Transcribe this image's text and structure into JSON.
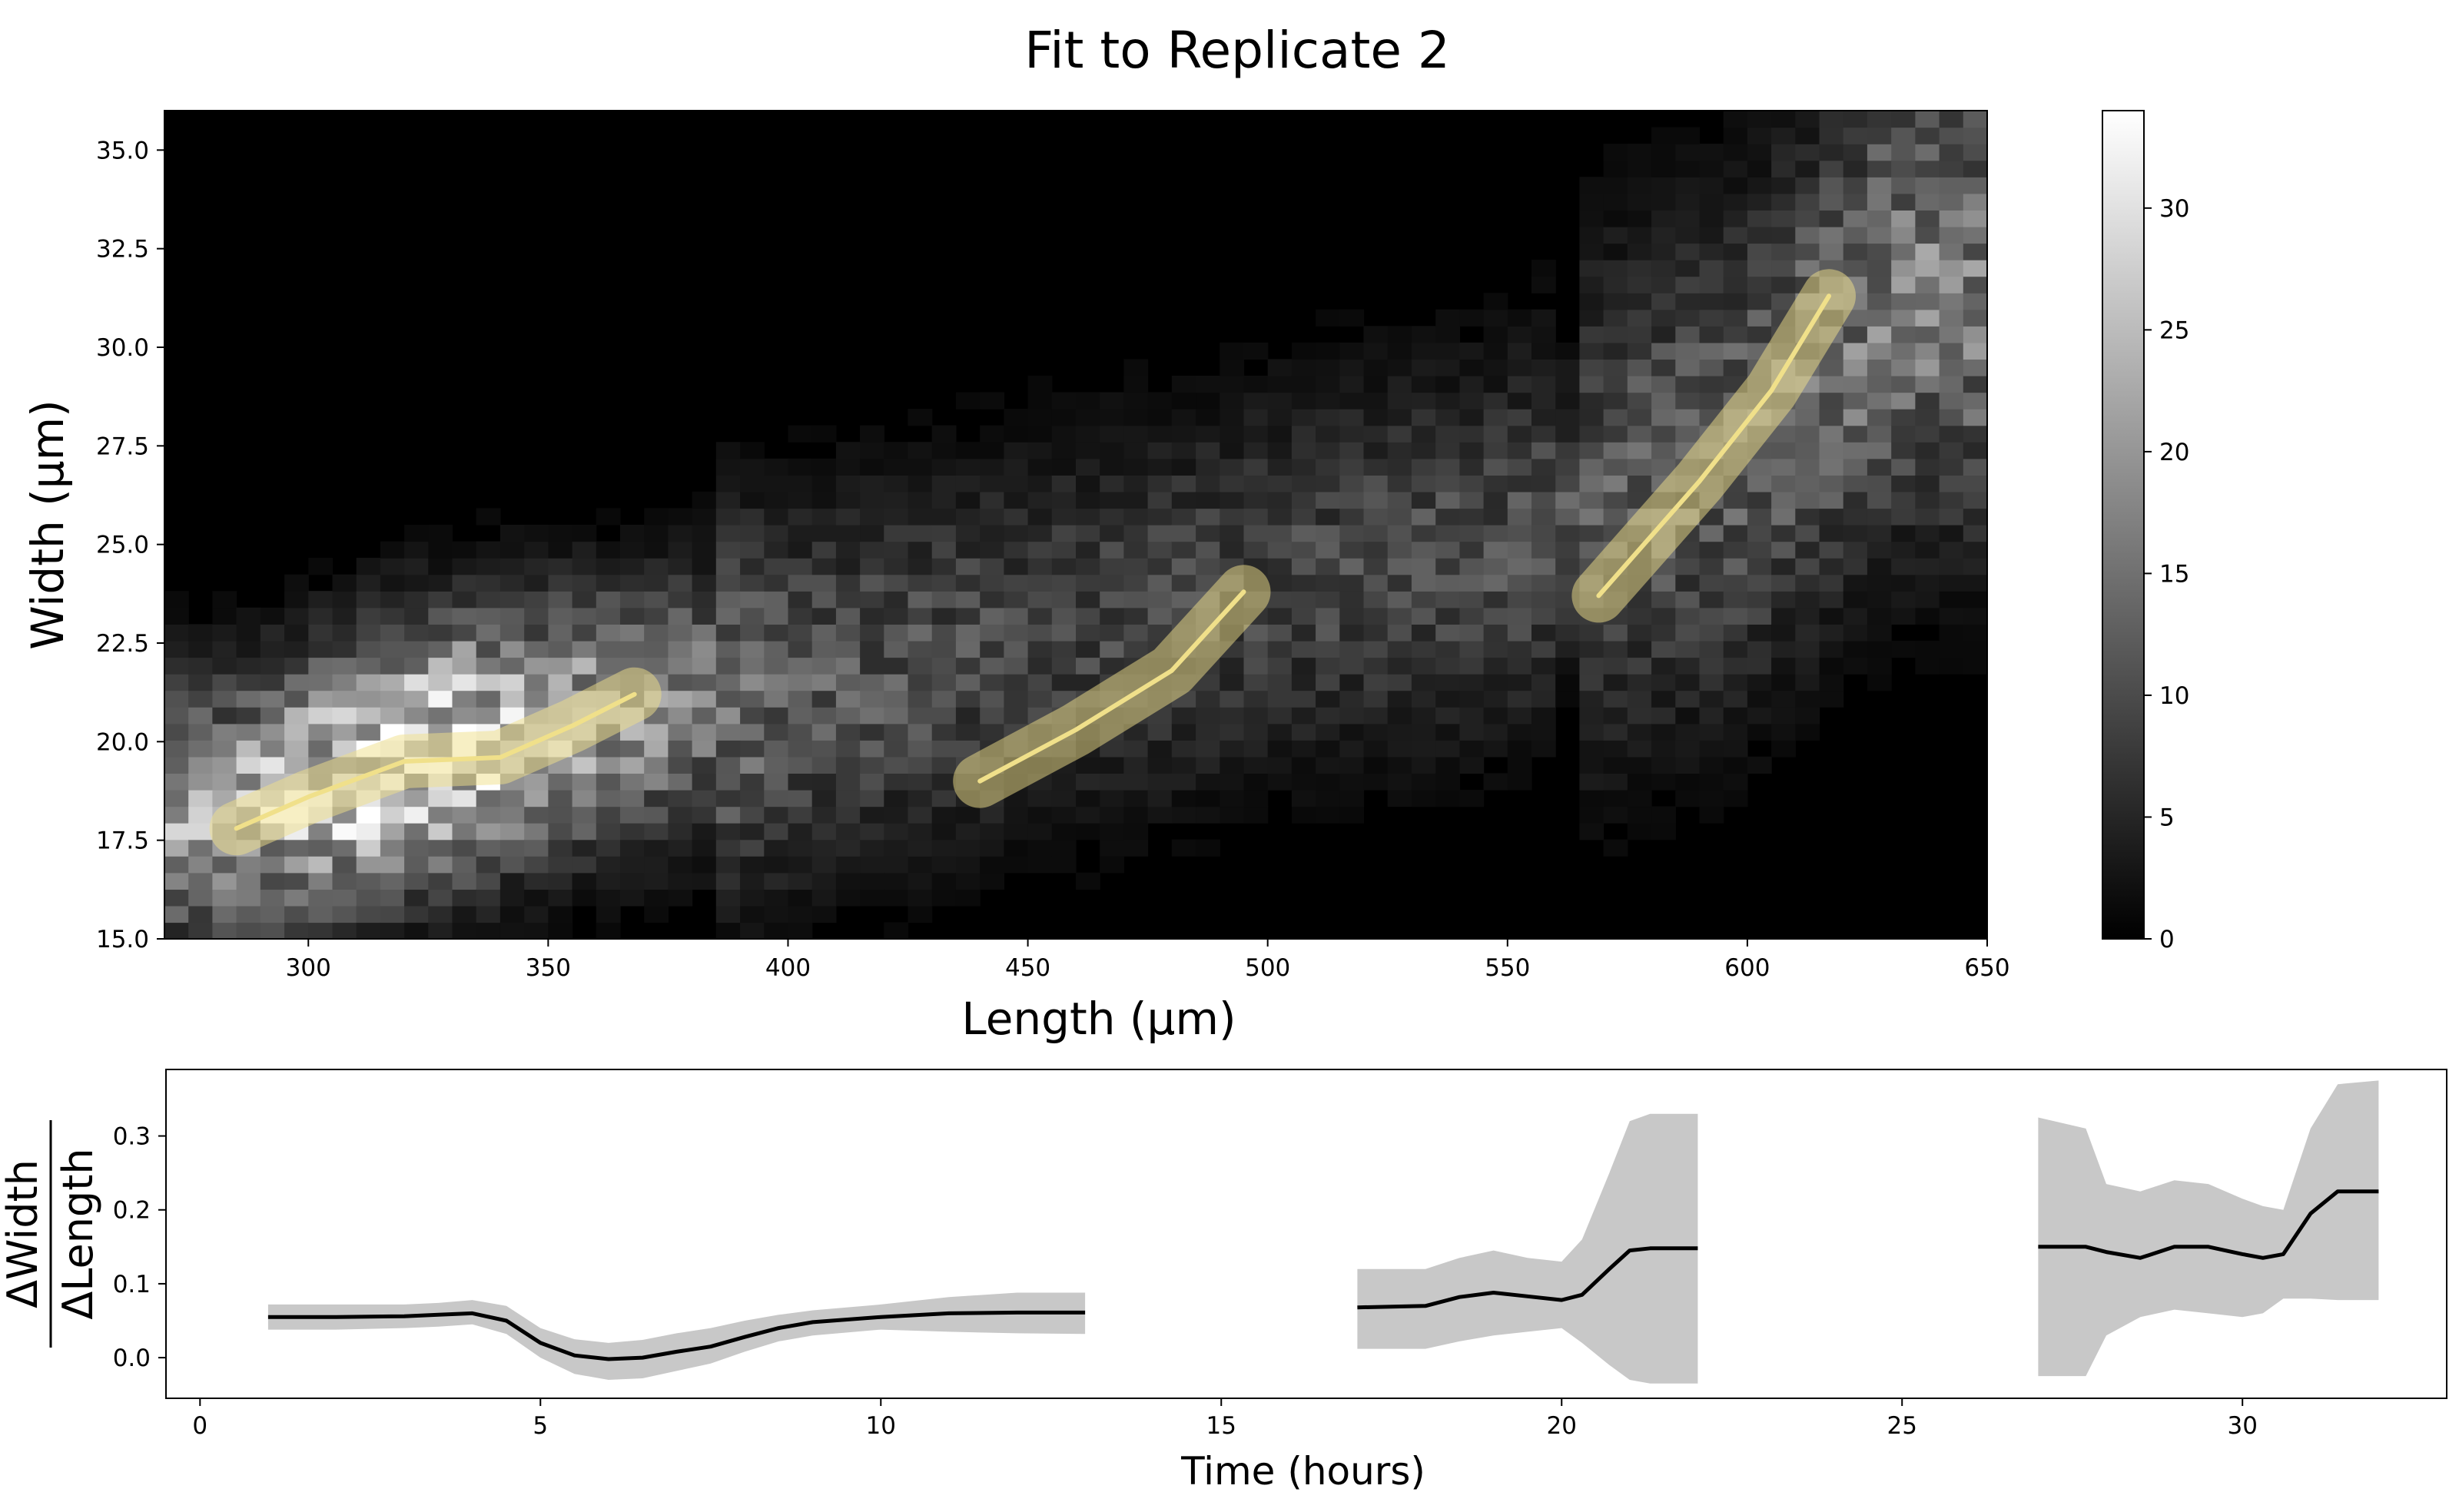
{
  "title": "Fit to Replicate 2",
  "chart_data": [
    {
      "type": "heatmap",
      "xlabel": "Length (μm)",
      "ylabel": "Width (μm)",
      "xlim": [
        270,
        650
      ],
      "ylim": [
        15.0,
        36.0
      ],
      "xticks": [
        "300",
        "350",
        "400",
        "450",
        "500",
        "550",
        "600",
        "650"
      ],
      "yticks": [
        "15.0",
        "17.5",
        "20.0",
        "22.5",
        "25.0",
        "27.5",
        "30.0",
        "32.5",
        "35.0"
      ],
      "colormap": "gray",
      "colorbar": {
        "range": [
          0,
          34
        ],
        "ticks": [
          "0",
          "5",
          "10",
          "15",
          "20",
          "25",
          "30"
        ]
      },
      "density_ridge": [
        {
          "x": 285,
          "y": 18.2,
          "value": 22
        },
        {
          "x": 320,
          "y": 19.6,
          "value": 32
        },
        {
          "x": 355,
          "y": 20.5,
          "value": 22
        },
        {
          "x": 400,
          "y": 21.2,
          "value": 12
        },
        {
          "x": 450,
          "y": 22.5,
          "value": 9
        },
        {
          "x": 500,
          "y": 24.0,
          "value": 9
        },
        {
          "x": 550,
          "y": 25.0,
          "value": 10
        },
        {
          "x": 600,
          "y": 27.5,
          "value": 13
        },
        {
          "x": 630,
          "y": 31.5,
          "value": 16
        }
      ],
      "fit_color": "#f0e08a",
      "fits": [
        {
          "x": [
            285,
            300,
            320,
            340,
            355,
            368
          ],
          "y": [
            17.8,
            18.6,
            19.5,
            19.6,
            20.4,
            21.2
          ]
        },
        {
          "x": [
            440,
            460,
            480,
            495
          ],
          "y": [
            19.0,
            20.3,
            21.8,
            23.8
          ]
        },
        {
          "x": [
            569,
            590,
            605,
            617
          ],
          "y": [
            23.7,
            26.6,
            28.9,
            31.3
          ]
        }
      ]
    },
    {
      "type": "line",
      "xlabel": "Time (hours)",
      "ylabel_top": "ΔWidth",
      "ylabel_bottom": "ΔLength",
      "xlim": [
        -0.5,
        33
      ],
      "ylim": [
        -0.055,
        0.39
      ],
      "xticks": [
        "0",
        "5",
        "10",
        "15",
        "20",
        "25",
        "30"
      ],
      "yticks": [
        "0.0",
        "0.1",
        "0.2",
        "0.3"
      ],
      "line_color": "#000000",
      "band_color": "#c8c8c8",
      "segments": [
        {
          "x": [
            1,
            2,
            3,
            3.5,
            4,
            4.5,
            5,
            5.5,
            6,
            6.5,
            7,
            7.5,
            8,
            8.5,
            9,
            10,
            11,
            12,
            13
          ],
          "y": [
            0.055,
            0.055,
            0.056,
            0.058,
            0.06,
            0.05,
            0.02,
            0.003,
            -0.002,
            0.0,
            0.008,
            0.015,
            0.028,
            0.04,
            0.048,
            0.055,
            0.06,
            0.061,
            0.061
          ],
          "lower": [
            0.038,
            0.038,
            0.04,
            0.042,
            0.045,
            0.032,
            0.0,
            -0.022,
            -0.03,
            -0.028,
            -0.018,
            -0.008,
            0.008,
            0.022,
            0.03,
            0.038,
            0.035,
            0.033,
            0.032
          ],
          "upper": [
            0.072,
            0.072,
            0.072,
            0.074,
            0.078,
            0.07,
            0.04,
            0.025,
            0.02,
            0.024,
            0.033,
            0.04,
            0.05,
            0.058,
            0.064,
            0.072,
            0.082,
            0.088,
            0.088
          ]
        },
        {
          "x": [
            17,
            18,
            18.5,
            19,
            19.5,
            20,
            20.3,
            20.7,
            21,
            21.3,
            22
          ],
          "y": [
            0.068,
            0.07,
            0.082,
            0.088,
            0.083,
            0.078,
            0.085,
            0.12,
            0.145,
            0.148,
            0.148
          ],
          "lower": [
            0.012,
            0.012,
            0.022,
            0.03,
            0.035,
            0.04,
            0.02,
            -0.01,
            -0.03,
            -0.035,
            -0.035
          ],
          "upper": [
            0.12,
            0.12,
            0.135,
            0.145,
            0.135,
            0.13,
            0.16,
            0.25,
            0.32,
            0.33,
            0.33
          ]
        },
        {
          "x": [
            27,
            27.7,
            28,
            28.5,
            29,
            29.5,
            30,
            30.3,
            30.6,
            31,
            31.4,
            32
          ],
          "y": [
            0.15,
            0.15,
            0.143,
            0.135,
            0.15,
            0.15,
            0.14,
            0.135,
            0.14,
            0.195,
            0.225,
            0.225
          ],
          "lower": [
            -0.025,
            -0.025,
            0.03,
            0.055,
            0.065,
            0.06,
            0.055,
            0.06,
            0.08,
            0.08,
            0.078,
            0.078
          ],
          "upper": [
            0.325,
            0.31,
            0.235,
            0.225,
            0.24,
            0.235,
            0.215,
            0.205,
            0.2,
            0.31,
            0.37,
            0.375
          ]
        }
      ]
    }
  ]
}
